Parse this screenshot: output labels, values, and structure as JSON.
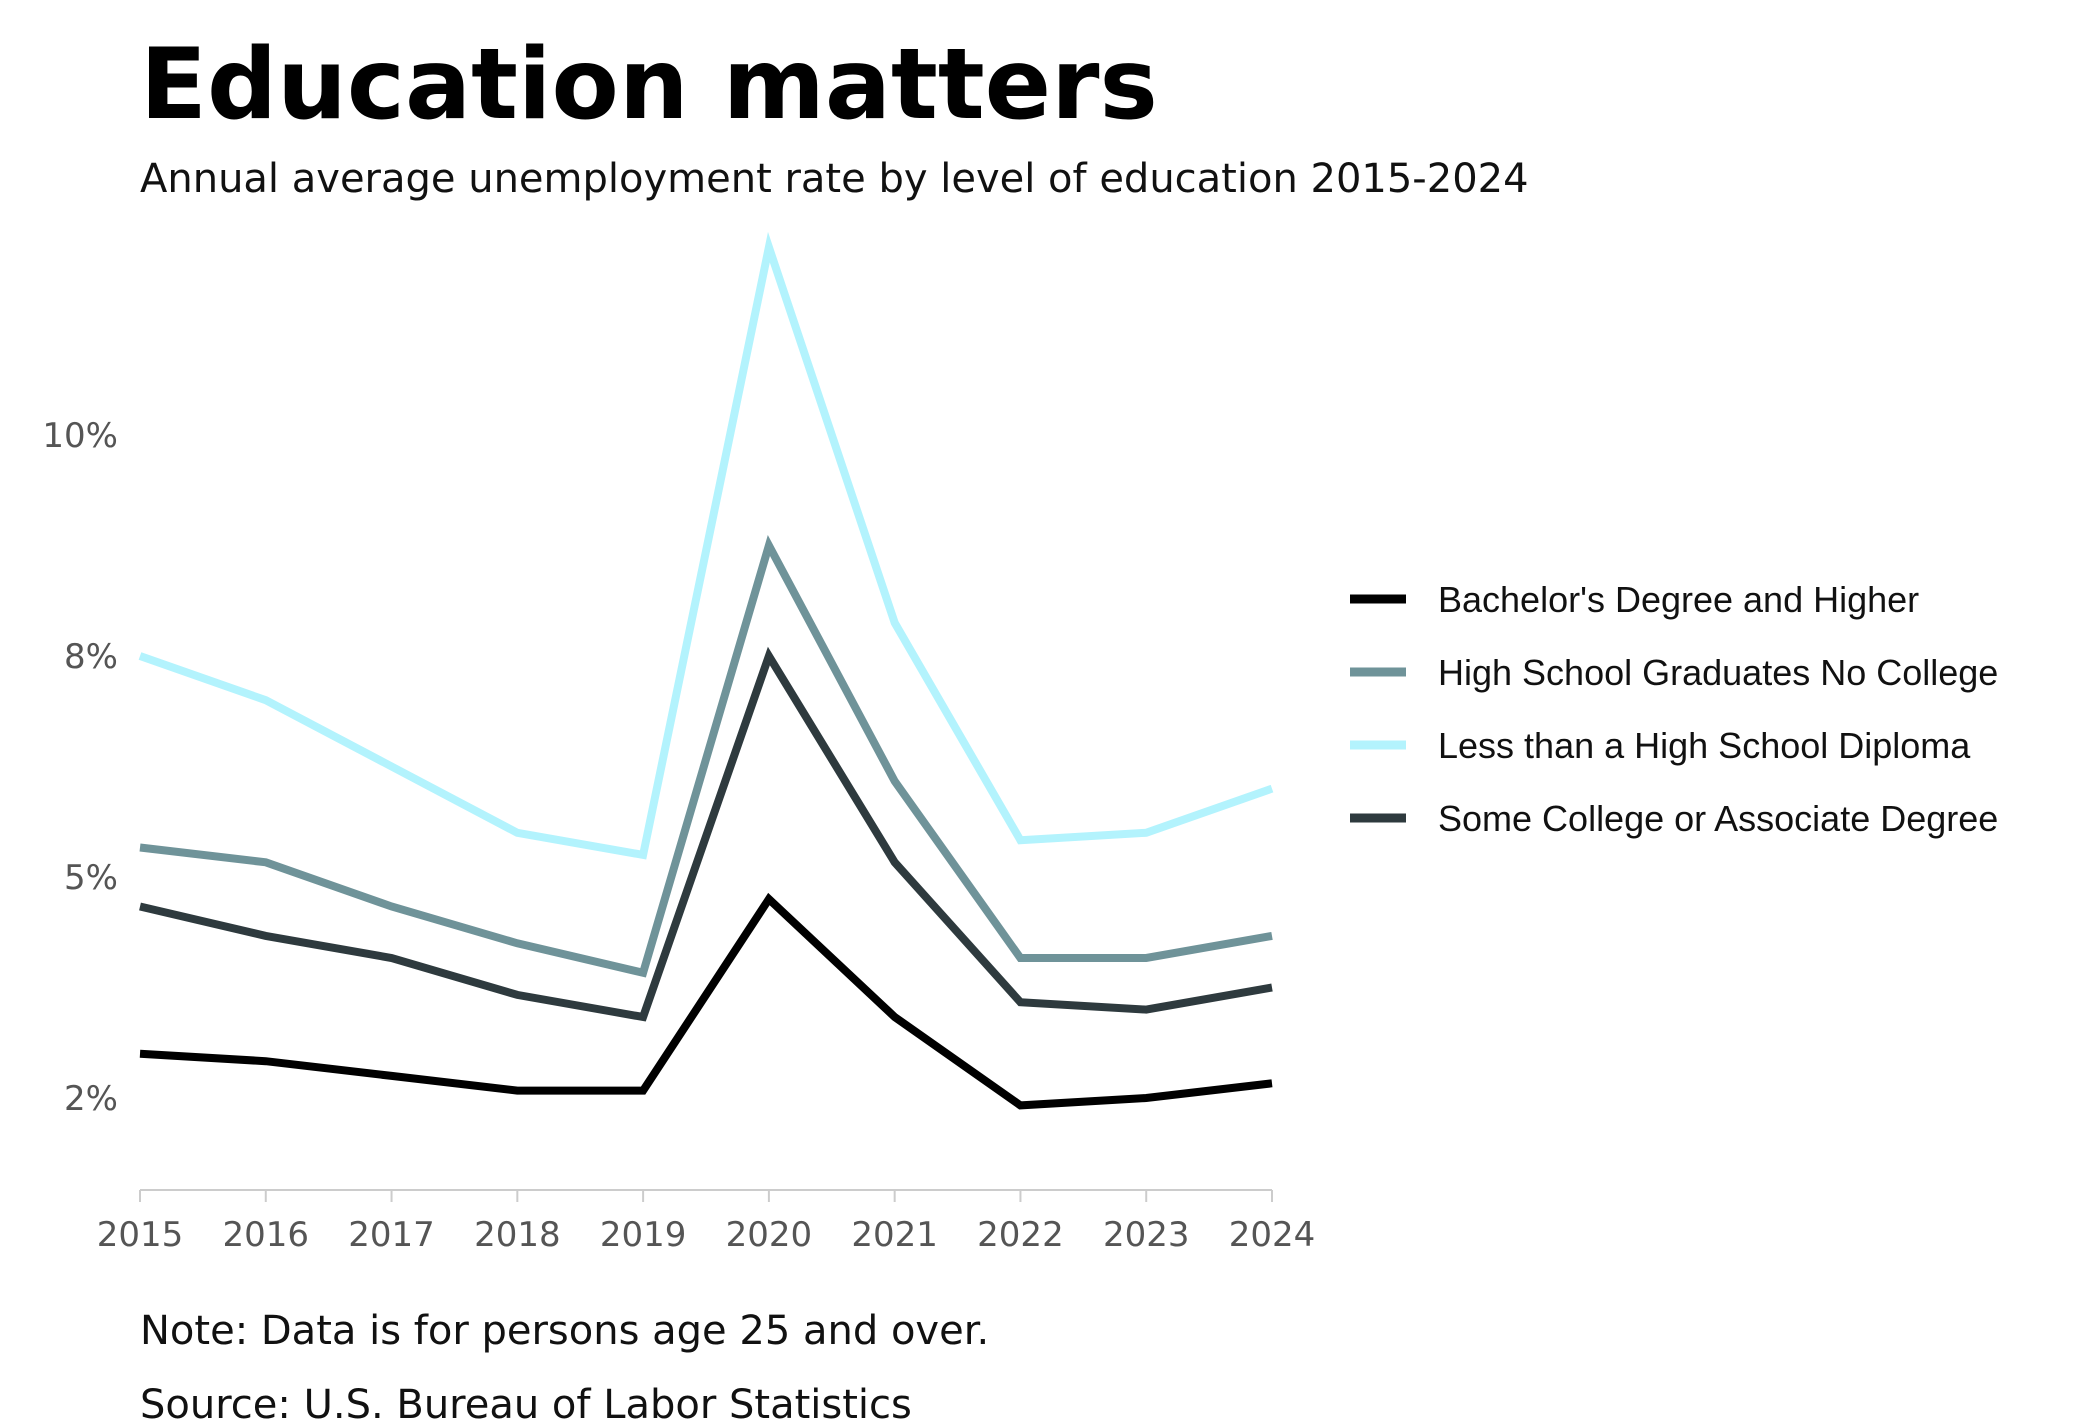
{
  "title": "Education matters",
  "subtitle": "Annual average unemployment rate by level of education 2015-2024",
  "note": "Note: Data is for persons age 25 and over.",
  "source": "Source: U.S. Bureau of Labor Statistics",
  "chart_data": {
    "type": "line",
    "x": [
      2015,
      2016,
      2017,
      2018,
      2019,
      2020,
      2021,
      2022,
      2023,
      2024
    ],
    "x_tick_labels": [
      "2015",
      "2016",
      "2017",
      "2018",
      "2019",
      "2020",
      "2021",
      "2022",
      "2023",
      "2024"
    ],
    "y_tick_values": [
      2,
      5,
      8,
      10
    ],
    "y_tick_labels": [
      "2%",
      "5%",
      "8%",
      "10%"
    ],
    "xlabel": "",
    "ylabel": "",
    "grid": false,
    "legend_position": "right",
    "series": [
      {
        "name": "Bachelor's Degree and Higher",
        "color": "#000000",
        "values": [
          2.6,
          2.5,
          2.3,
          2.1,
          2.1,
          4.7,
          3.1,
          1.9,
          2.0,
          2.2
        ]
      },
      {
        "name": "High School Graduates No College",
        "color": "#6f9399",
        "values": [
          5.4,
          5.2,
          4.6,
          4.1,
          3.7,
          9.0,
          6.3,
          3.9,
          3.9,
          4.2
        ]
      },
      {
        "name": "Less than a High School Diploma",
        "color": "#b3f3fd",
        "values": [
          8.0,
          7.4,
          6.5,
          5.6,
          5.3,
          11.7,
          8.3,
          5.5,
          5.6,
          6.2
        ]
      },
      {
        "name": "Some College or Associate Degree",
        "color": "#2e3a3e",
        "values": [
          4.6,
          4.2,
          3.9,
          3.4,
          3.1,
          8.0,
          5.2,
          3.3,
          3.2,
          3.5
        ]
      }
    ]
  }
}
